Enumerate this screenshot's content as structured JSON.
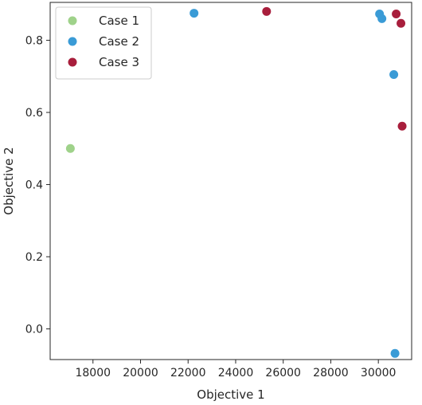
{
  "chart_data": {
    "type": "scatter",
    "title": "",
    "xlabel": "Objective 1",
    "ylabel": "Objective 2",
    "xlim": [
      16200,
      31400
    ],
    "ylim": [
      -0.085,
      0.905
    ],
    "xticks": [
      18000,
      20000,
      22000,
      24000,
      26000,
      28000,
      30000
    ],
    "yticks": [
      0.0,
      0.2,
      0.4,
      0.6,
      0.8
    ],
    "ytick_labels": [
      "0.0",
      "0.2",
      "0.4",
      "0.6",
      "0.8"
    ],
    "grid": false,
    "legend": {
      "placement": "top-left"
    },
    "series": [
      {
        "name": "Case 1",
        "color": "#9fd28a",
        "points": [
          {
            "x": 17050,
            "y": 0.5
          }
        ]
      },
      {
        "name": "Case 2",
        "color": "#3a9bd6",
        "points": [
          {
            "x": 22250,
            "y": 0.875
          },
          {
            "x": 30050,
            "y": 0.873
          },
          {
            "x": 30150,
            "y": 0.86
          },
          {
            "x": 30650,
            "y": 0.705
          },
          {
            "x": 30700,
            "y": -0.068
          }
        ]
      },
      {
        "name": "Case 3",
        "color": "#a81e3c",
        "points": [
          {
            "x": 25300,
            "y": 0.88
          },
          {
            "x": 30750,
            "y": 0.873
          },
          {
            "x": 30950,
            "y": 0.847
          },
          {
            "x": 31000,
            "y": 0.562
          }
        ]
      }
    ]
  }
}
